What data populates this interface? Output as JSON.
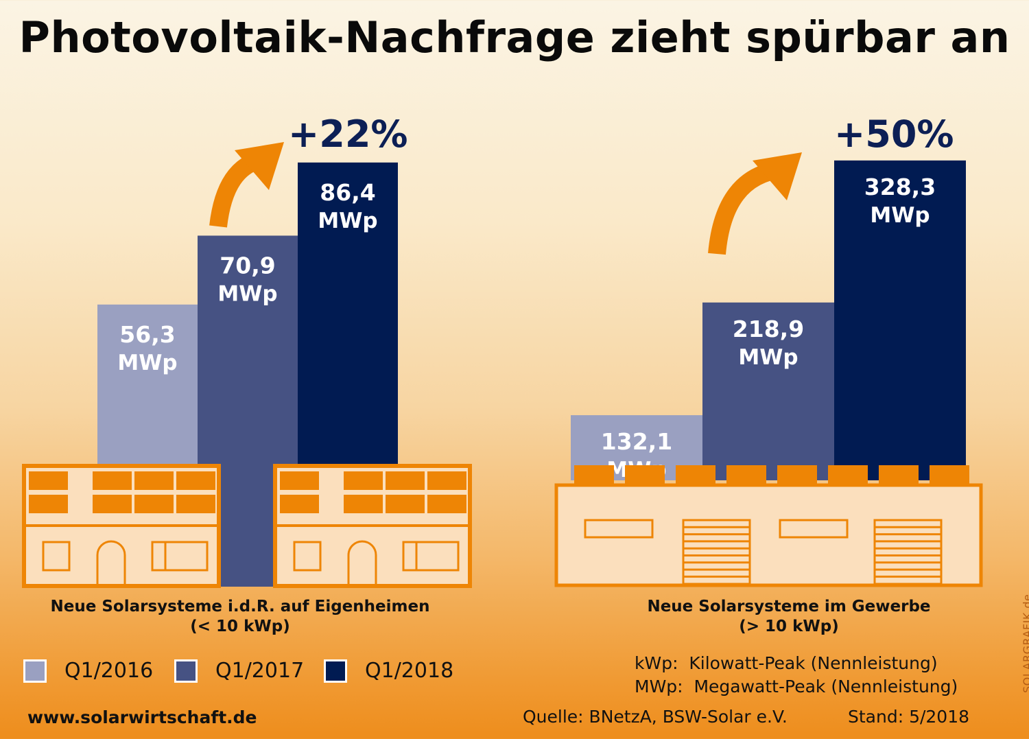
{
  "title": "Photovoltaik-Nachfrage zieht spürbar an",
  "chart_data": [
    {
      "type": "bar",
      "title": "Neue Solarsysteme i.d.R. auf Eigenheimen",
      "subtitle": "(< 10 kWp)",
      "unit": "MWp",
      "categories": [
        "Q1/2016",
        "Q1/2017",
        "Q1/2018"
      ],
      "values": [
        56.3,
        70.9,
        86.4
      ],
      "value_labels": [
        "56,3",
        "70,9",
        "86,4"
      ],
      "growth_label": "+22%",
      "growth_number": "+22",
      "growth_sign": "%"
    },
    {
      "type": "bar",
      "title": "Neue Solarsysteme im Gewerbe",
      "subtitle": "(> 10 kWp)",
      "unit": "MWp",
      "categories": [
        "Q1/2016",
        "Q1/2017",
        "Q1/2018"
      ],
      "values": [
        132.1,
        218.9,
        328.3
      ],
      "value_labels": [
        "132,1",
        "218,9",
        "328,3"
      ],
      "growth_label": "+50%",
      "growth_number": "+50",
      "growth_sign": "%"
    }
  ],
  "legend": [
    {
      "label": "Q1/2016",
      "color": "#9aa0c1"
    },
    {
      "label": "Q1/2017",
      "color": "#465283"
    },
    {
      "label": "Q1/2018",
      "color": "#011b52"
    }
  ],
  "colors": {
    "accent_orange": "#ee8505",
    "building_fill": "#fbdfbd",
    "navy_text": "#0c1f55"
  },
  "definitions": [
    "kWp:  Kilowatt-Peak (Nennleistung)",
    "MWp:  Megawatt-Peak (Nennleistung)"
  ],
  "footer": {
    "website": "www.solarwirtschaft.de",
    "source": "Quelle: BNetzA, BSW-Solar e.V.",
    "date": "Stand: 5/2018",
    "credit": "SOLARGRAFIK.de"
  }
}
